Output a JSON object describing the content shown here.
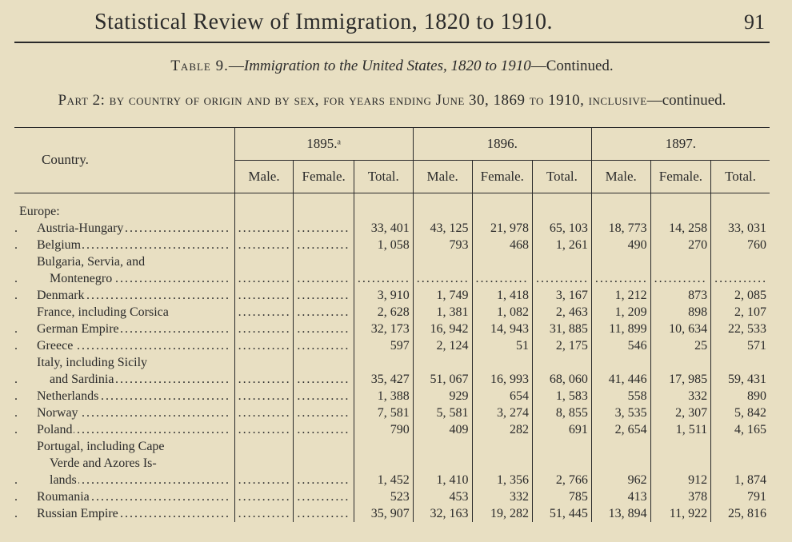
{
  "header": {
    "running_title": "Statistical Review of Immigration, 1820 to 1910.",
    "page_number": "91"
  },
  "table_caption": {
    "prefix": "Table 9.",
    "title_italic": "Immigration to the United States, 1820 to 1910",
    "suffix": "—Continued."
  },
  "part_line": {
    "lead": "Part 2:",
    "body": " by country of origin and by sex, for years ending June 30, 1869 to 1910, inclusive",
    "tail": "—continued."
  },
  "columns": {
    "country": "Country.",
    "years": [
      "1895.ᵃ",
      "1896.",
      "1897."
    ],
    "subs": [
      "Male.",
      "Female.",
      "Total."
    ]
  },
  "rows": [
    {
      "label": "Europe:",
      "indent": 0,
      "header": true
    },
    {
      "label": "Austria-Hungary",
      "indent": 1,
      "dots": true,
      "v": [
        "",
        "",
        "33, 401",
        "43, 125",
        "21, 978",
        "65, 103",
        "18, 773",
        "14, 258",
        "33, 031"
      ]
    },
    {
      "label": "Belgium",
      "indent": 1,
      "dots": true,
      "v": [
        "",
        "",
        "1, 058",
        "793",
        "468",
        "1, 261",
        "490",
        "270",
        "760"
      ]
    },
    {
      "label": "Bulgaria, Servia, and",
      "indent": 1,
      "nobreak": true
    },
    {
      "label": "Montenegro",
      "indent": 2,
      "dots": true,
      "v": [
        "",
        "",
        "",
        "",
        "",
        "",
        "",
        "",
        ""
      ],
      "alldots": true
    },
    {
      "label": "Denmark",
      "indent": 1,
      "dots": true,
      "v": [
        "",
        "",
        "3, 910",
        "1, 749",
        "1, 418",
        "3, 167",
        "1, 212",
        "873",
        "2, 085"
      ]
    },
    {
      "label": "France, including Corsica",
      "indent": 1,
      "dots": false,
      "v": [
        "",
        "",
        "2, 628",
        "1, 381",
        "1, 082",
        "2, 463",
        "1, 209",
        "898",
        "2, 107"
      ]
    },
    {
      "label": "German Empire",
      "indent": 1,
      "dots": true,
      "v": [
        "",
        "",
        "32, 173",
        "16, 942",
        "14, 943",
        "31, 885",
        "11, 899",
        "10, 634",
        "22, 533"
      ]
    },
    {
      "label": "Greece",
      "indent": 1,
      "dots": true,
      "v": [
        "",
        "",
        "597",
        "2, 124",
        "51",
        "2, 175",
        "546",
        "25",
        "571"
      ]
    },
    {
      "label": "Italy, including Sicily",
      "indent": 1,
      "nobreak": true
    },
    {
      "label": "and Sardinia",
      "indent": 2,
      "dots": true,
      "v": [
        "",
        "",
        "35, 427",
        "51, 067",
        "16, 993",
        "68, 060",
        "41, 446",
        "17, 985",
        "59, 431"
      ]
    },
    {
      "label": "Netherlands",
      "indent": 1,
      "dots": true,
      "v": [
        "",
        "",
        "1, 388",
        "929",
        "654",
        "1, 583",
        "558",
        "332",
        "890"
      ]
    },
    {
      "label": "Norway",
      "indent": 1,
      "dots": true,
      "v": [
        "",
        "",
        "7, 581",
        "5, 581",
        "3, 274",
        "8, 855",
        "3, 535",
        "2, 307",
        "5, 842"
      ]
    },
    {
      "label": "Poland",
      "indent": 1,
      "dots": true,
      "v": [
        "",
        "",
        "790",
        "409",
        "282",
        "691",
        "2, 654",
        "1, 511",
        "4, 165"
      ]
    },
    {
      "label": "Portugal, including Cape",
      "indent": 1,
      "nobreak": true
    },
    {
      "label": "Verde and Azores Is-",
      "indent": 2,
      "nobreak": true
    },
    {
      "label": "lands",
      "indent": 2,
      "dots": true,
      "v": [
        "",
        "",
        "1, 452",
        "1, 410",
        "1, 356",
        "2, 766",
        "962",
        "912",
        "1, 874"
      ]
    },
    {
      "label": "Roumania",
      "indent": 1,
      "dots": true,
      "v": [
        "",
        "",
        "523",
        "453",
        "332",
        "785",
        "413",
        "378",
        "791"
      ]
    },
    {
      "label": "Russian Empire",
      "indent": 1,
      "dots": true,
      "v": [
        "",
        "",
        "35, 907",
        "32, 163",
        "19, 282",
        "51, 445",
        "13, 894",
        "11, 922",
        "25, 816"
      ]
    }
  ],
  "colors": {
    "paper": "#e8dfc2",
    "ink": "#2a2a2a"
  }
}
